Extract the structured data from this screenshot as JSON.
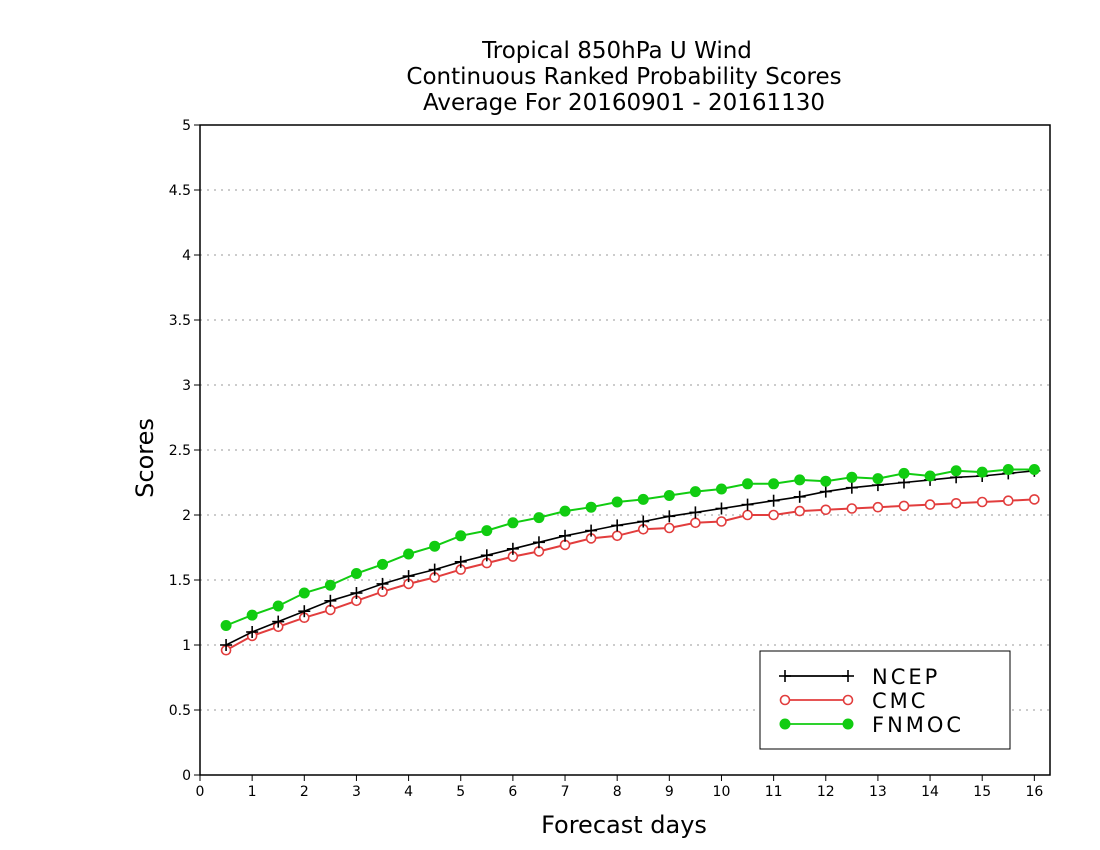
{
  "chart_data": {
    "type": "line",
    "title": [
      "Tropical 850hPa U Wind",
      "Continuous Ranked Probability Scores",
      "Average For 20160901 - 20161130"
    ],
    "xlabel": "Forecast days",
    "ylabel": "Scores",
    "xlim": [
      0,
      16.3
    ],
    "ylim": [
      0,
      5
    ],
    "x_ticks": [
      0,
      1,
      2,
      3,
      4,
      5,
      6,
      7,
      8,
      9,
      10,
      11,
      12,
      13,
      14,
      15,
      16
    ],
    "y_ticks": [
      0,
      0.5,
      1,
      1.5,
      2,
      2.5,
      3,
      3.5,
      4,
      4.5,
      5
    ],
    "grid": "horizontal dotted",
    "legend_position": "bottom-right",
    "x": [
      0.5,
      1,
      1.5,
      2,
      2.5,
      3,
      3.5,
      4,
      4.5,
      5,
      5.5,
      6,
      6.5,
      7,
      7.5,
      8,
      8.5,
      9,
      9.5,
      10,
      10.5,
      11,
      11.5,
      12,
      12.5,
      13,
      13.5,
      14,
      14.5,
      15,
      15.5,
      16
    ],
    "series": [
      {
        "name": "NCEP",
        "color": "#000000",
        "marker": "plus",
        "values": [
          1.0,
          1.1,
          1.18,
          1.26,
          1.34,
          1.4,
          1.47,
          1.53,
          1.58,
          1.64,
          1.69,
          1.74,
          1.79,
          1.84,
          1.88,
          1.92,
          1.95,
          1.99,
          2.02,
          2.05,
          2.08,
          2.11,
          2.14,
          2.18,
          2.21,
          2.23,
          2.25,
          2.27,
          2.29,
          2.3,
          2.32,
          2.34
        ]
      },
      {
        "name": "CMC",
        "color": "#e23d3d",
        "marker": "open-circle",
        "values": [
          0.96,
          1.07,
          1.14,
          1.21,
          1.27,
          1.34,
          1.41,
          1.47,
          1.52,
          1.58,
          1.63,
          1.68,
          1.72,
          1.77,
          1.82,
          1.84,
          1.89,
          1.9,
          1.94,
          1.95,
          2.0,
          2.0,
          2.03,
          2.04,
          2.05,
          2.06,
          2.07,
          2.08,
          2.09,
          2.1,
          2.11,
          2.12
        ]
      },
      {
        "name": "FNMOC",
        "color": "#11cc11",
        "marker": "filled-circle",
        "values": [
          1.15,
          1.23,
          1.3,
          1.4,
          1.46,
          1.55,
          1.62,
          1.7,
          1.76,
          1.84,
          1.88,
          1.94,
          1.98,
          2.03,
          2.06,
          2.1,
          2.12,
          2.15,
          2.18,
          2.2,
          2.24,
          2.24,
          2.27,
          2.26,
          2.29,
          2.28,
          2.32,
          2.3,
          2.34,
          2.33,
          2.35,
          2.35
        ]
      }
    ]
  }
}
